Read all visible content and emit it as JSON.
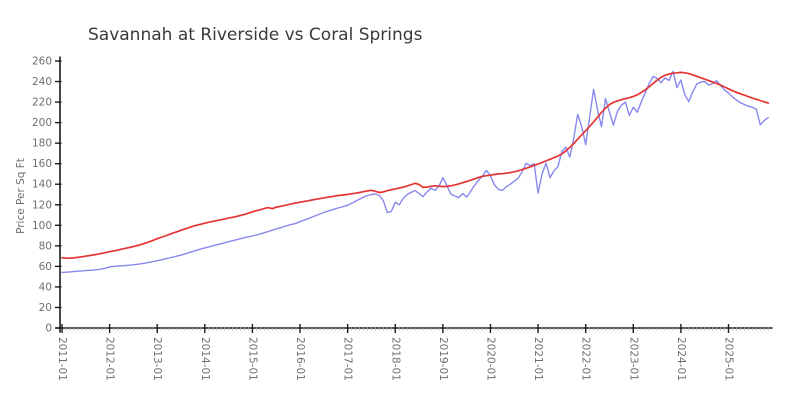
{
  "colors": {
    "background": "#ffffff",
    "axis": "#1a1a1a",
    "minor_tick": "#aaaaaa",
    "tick_label": "#6f6f6f",
    "title": "#3a3a3a",
    "red_line": "#e53434",
    "blue_line": "#8888ee"
  },
  "chart_data": {
    "type": "line",
    "title": "Savannah at Riverside vs Coral Springs",
    "xlabel": "",
    "ylabel": "Price Per Sq Ft",
    "x_unit": "month",
    "x_range": [
      "2011-01",
      "2025-11"
    ],
    "ylim": [
      0,
      260
    ],
    "grid": false,
    "legend": "none",
    "style": "xkcd-sketch",
    "y_ticks": [
      0,
      20,
      40,
      60,
      80,
      100,
      120,
      140,
      160,
      180,
      200,
      220,
      240,
      260
    ],
    "x_major_ticks": [
      "2011-01",
      "2012-01",
      "2013-01",
      "2014-01",
      "2015-01",
      "2016-01",
      "2017-01",
      "2018-01",
      "2019-01",
      "2020-01",
      "2021-01",
      "2022-01",
      "2023-01",
      "2024-01",
      "2025-01"
    ],
    "series": [
      {
        "name": "red",
        "color": "#e53434",
        "points_monthly": [
          68.5,
          68.1,
          68.0,
          68.3,
          68.8,
          69.3,
          69.9,
          70.6,
          71.2,
          71.9,
          72.6,
          73.4,
          74.3,
          75.0,
          75.8,
          76.7,
          77.6,
          78.4,
          79.3,
          80.3,
          81.4,
          82.6,
          83.9,
          85.4,
          87.0,
          88.3,
          89.6,
          91.0,
          92.4,
          93.8,
          95.2,
          96.5,
          97.8,
          99.0,
          100.1,
          101.1,
          102.1,
          103.0,
          103.8,
          104.6,
          105.4,
          106.2,
          107.0,
          107.8,
          108.7,
          109.6,
          110.6,
          111.8,
          113.2,
          114.2,
          115.2,
          116.4,
          117.2,
          116.2,
          117.6,
          118.4,
          119.2,
          120.1,
          121.0,
          121.8,
          122.5,
          123.2,
          123.9,
          124.6,
          125.3,
          126.0,
          126.7,
          127.4,
          128.0,
          128.6,
          129.1,
          129.6,
          130.1,
          130.7,
          131.3,
          131.9,
          132.7,
          133.5,
          134.1,
          133.1,
          131.9,
          132.5,
          133.7,
          134.7,
          135.5,
          136.3,
          137.1,
          138.3,
          139.5,
          140.9,
          139.7,
          136.9,
          137.3,
          137.9,
          138.5,
          138.1,
          137.7,
          137.9,
          138.5,
          139.3,
          140.3,
          141.5,
          142.7,
          143.9,
          145.3,
          146.7,
          147.7,
          148.3,
          148.9,
          149.5,
          150.1,
          150.3,
          150.7,
          151.3,
          152.1,
          153.1,
          154.3,
          155.5,
          156.9,
          158.3,
          159.7,
          161.1,
          162.7,
          164.3,
          165.9,
          167.3,
          169.5,
          172.5,
          175.9,
          179.7,
          183.9,
          188.1,
          192.1,
          196.3,
          200.7,
          205.3,
          209.9,
          214.1,
          217.5,
          219.7,
          221.1,
          222.3,
          223.3,
          224.3,
          225.5,
          227.1,
          229.3,
          231.9,
          234.9,
          238.1,
          241.3,
          244.1,
          246.1,
          247.3,
          248.1,
          248.5,
          248.9,
          248.5,
          247.7,
          246.5,
          245.1,
          243.7,
          242.3,
          240.9,
          239.5,
          238.1,
          236.5,
          234.7,
          232.9,
          231.1,
          229.5,
          228.1,
          226.7,
          225.3,
          223.9,
          222.7,
          221.5,
          220.3,
          219.1
        ]
      },
      {
        "name": "blue",
        "color": "#8888ee",
        "points_monthly": [
          54.0,
          54.3,
          54.6,
          55.0,
          55.3,
          55.6,
          56.0,
          56.2,
          56.5,
          56.9,
          57.4,
          58.2,
          59.5,
          60.0,
          60.4,
          60.6,
          60.9,
          61.2,
          61.6,
          62.0,
          62.6,
          63.2,
          64.0,
          64.8,
          65.5,
          66.4,
          67.3,
          68.2,
          69.1,
          70.0,
          71.0,
          72.2,
          73.4,
          74.6,
          75.8,
          77.0,
          78.0,
          79.0,
          80.0,
          81.0,
          82.0,
          83.0,
          84.0,
          85.0,
          86.0,
          87.0,
          88.0,
          88.8,
          89.6,
          90.6,
          91.6,
          92.8,
          94.0,
          95.2,
          96.4,
          97.6,
          98.8,
          100.0,
          101.0,
          102.0,
          103.5,
          105.0,
          106.5,
          108.0,
          109.5,
          111.0,
          112.5,
          113.8,
          115.0,
          116.2,
          117.3,
          118.4,
          119.5,
          121.5,
          123.5,
          125.5,
          127.5,
          129.0,
          130.0,
          130.5,
          129.0,
          124.0,
          112.5,
          113.5,
          122.5,
          120.0,
          126.0,
          130.0,
          132.0,
          134.0,
          131.0,
          128.0,
          132.5,
          136.0,
          134.0,
          138.0,
          146.5,
          139.0,
          130.5,
          128.5,
          127.0,
          131.0,
          127.5,
          133.0,
          139.0,
          144.0,
          148.0,
          153.5,
          148.0,
          139.5,
          135.0,
          134.0,
          137.5,
          140.0,
          143.0,
          146.0,
          152.0,
          160.5,
          158.0,
          160.0,
          131.5,
          150.0,
          160.5,
          146.5,
          153.0,
          157.0,
          172.0,
          176.0,
          166.5,
          185.0,
          208.0,
          196.0,
          178.5,
          205.0,
          232.5,
          212.0,
          196.0,
          223.5,
          210.0,
          197.5,
          211.0,
          217.0,
          220.0,
          207.0,
          215.0,
          210.0,
          220.0,
          229.0,
          238.0,
          245.0,
          243.0,
          239.0,
          243.5,
          241.0,
          250.0,
          234.0,
          241.5,
          227.0,
          220.5,
          230.0,
          237.5,
          239.5,
          240.0,
          236.5,
          238.0,
          240.8,
          236.0,
          232.0,
          228.7,
          225.0,
          222.0,
          219.5,
          217.5,
          216.0,
          215.0,
          213.0,
          198.0,
          202.0,
          205.0
        ]
      }
    ]
  }
}
